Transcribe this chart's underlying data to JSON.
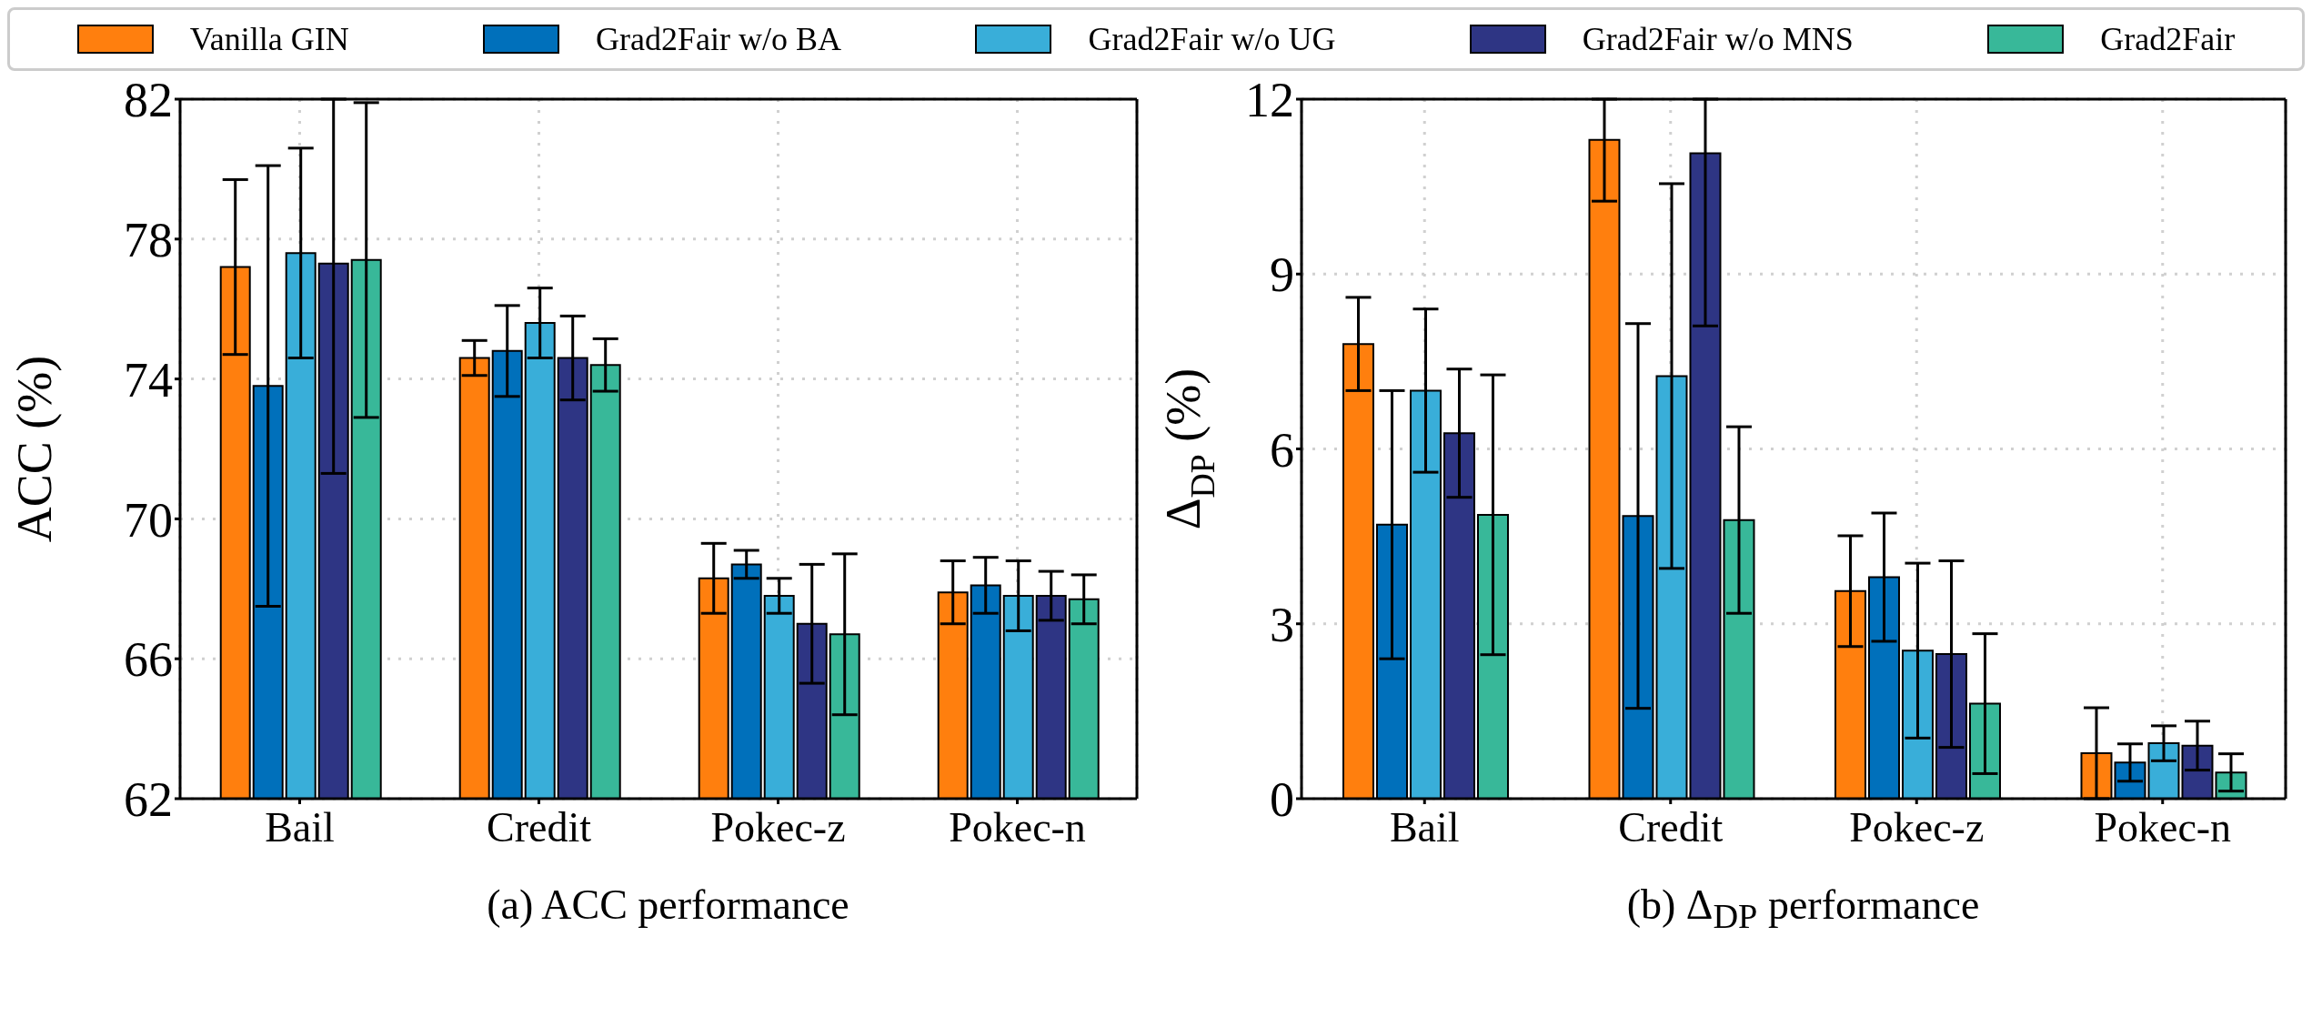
{
  "chart_data": [
    {
      "type": "bar",
      "xlabel": "(a) ACC performance",
      "ylabel": "ACC (%)",
      "categories": [
        "Bail",
        "Credit",
        "Pokec-z",
        "Pokec-n"
      ],
      "ylim": [
        62,
        82
      ],
      "yticks": [
        62,
        66,
        70,
        74,
        78,
        82
      ],
      "grid": true,
      "legend": "top",
      "series": [
        {
          "name": "Vanilla GIN",
          "color": "#ff7f0e",
          "values": [
            77.2,
            74.6,
            68.3,
            67.9
          ],
          "errors": [
            2.5,
            0.5,
            1.0,
            0.9
          ]
        },
        {
          "name": "Grad2Fair w/o BA",
          "color": "#0070bb",
          "values": [
            73.8,
            74.8,
            68.7,
            68.1
          ],
          "errors": [
            6.3,
            1.3,
            0.4,
            0.8
          ]
        },
        {
          "name": "Grad2Fair w/o UG",
          "color": "#39aed9",
          "values": [
            77.6,
            75.6,
            67.8,
            67.8
          ],
          "errors": [
            3.0,
            1.0,
            0.5,
            1.0
          ]
        },
        {
          "name": "Grad2Fair w/o MNS",
          "color": "#2e3584",
          "values": [
            77.3,
            74.6,
            67.0,
            67.8
          ],
          "errors": [
            [
              71.3,
              82
            ],
            1.2,
            1.7,
            0.7
          ]
        },
        {
          "name": "Grad2Fair",
          "color": "#38b899",
          "values": [
            77.4,
            74.4,
            66.7,
            67.7
          ],
          "errors": [
            4.5,
            0.75,
            2.3,
            0.7
          ]
        }
      ]
    },
    {
      "type": "bar",
      "xlabel": "(b) Δ$_{DP}$ performance",
      "ylabel": "Δ$_{DP}$ (%)",
      "categories": [
        "Bail",
        "Credit",
        "Pokec-z",
        "Pokec-n"
      ],
      "ylim": [
        0,
        12
      ],
      "yticks": [
        0,
        3,
        6,
        9,
        12
      ],
      "grid": true,
      "series": [
        {
          "color": "#ff7f0e",
          "values": [
            7.8,
            11.3,
            3.56,
            0.78
          ],
          "errors": [
            0.8,
            [
              10.25,
              12
            ],
            0.95,
            0.78
          ]
        },
        {
          "color": "#0070bb",
          "values": [
            4.7,
            4.85,
            3.8,
            0.62
          ],
          "errors": [
            2.3,
            3.3,
            1.1,
            0.32
          ]
        },
        {
          "color": "#39aed9",
          "values": [
            7.0,
            7.25,
            2.54,
            0.95
          ],
          "errors": [
            1.4,
            3.3,
            1.5,
            0.3
          ]
        },
        {
          "color": "#2e3584",
          "values": [
            6.27,
            11.07,
            2.48,
            0.91
          ],
          "errors": [
            1.1,
            [
              8.11,
              12
            ],
            1.6,
            0.42
          ]
        },
        {
          "color": "#38b899",
          "values": [
            4.87,
            4.78,
            1.63,
            0.45
          ],
          "errors": [
            2.4,
            1.6,
            1.2,
            0.32
          ]
        }
      ]
    }
  ]
}
